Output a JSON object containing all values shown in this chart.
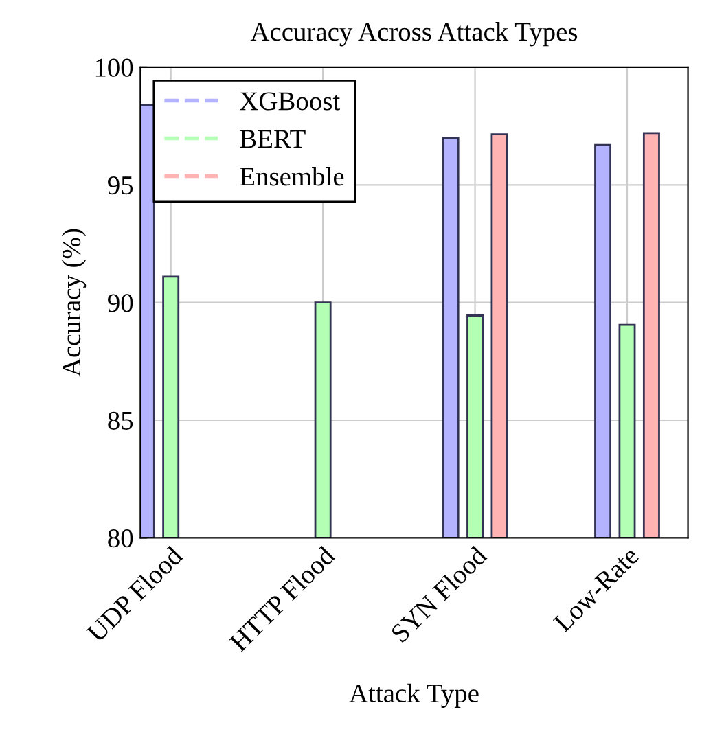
{
  "chart_data": {
    "type": "bar",
    "title": "Accuracy Across Attack Types",
    "xlabel": "Attack Type",
    "ylabel": "Accuracy (%)",
    "categories": [
      "UDP Flood",
      "HTTP Flood",
      "SYN Flood",
      "Low-Rate"
    ],
    "series": [
      {
        "name": "XGBoost",
        "color": "#b3b3ff",
        "values": [
          98.4,
          null,
          97.0,
          96.7
        ]
      },
      {
        "name": "BERT",
        "color": "#b3ffb3",
        "values": [
          91.1,
          90.0,
          89.45,
          89.05
        ]
      },
      {
        "name": "Ensemble",
        "color": "#ffb3b3",
        "values": [
          null,
          null,
          97.15,
          97.2
        ]
      }
    ],
    "ylim": [
      80,
      100
    ],
    "yticks": [
      80,
      85,
      90,
      95,
      100
    ],
    "grid": true,
    "legend": "top left",
    "line_style": "dashed"
  }
}
